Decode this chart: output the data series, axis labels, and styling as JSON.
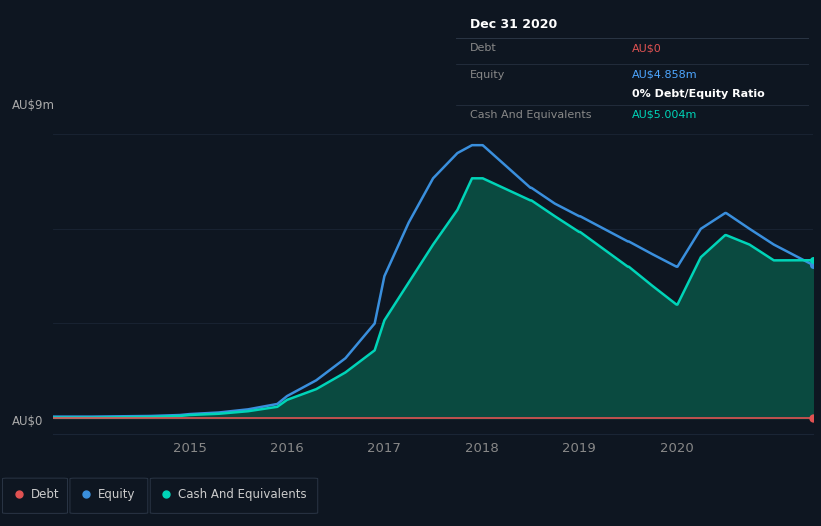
{
  "bg_color": "#0e1621",
  "plot_bg_color": "#0e1621",
  "grid_color": "#1a2535",
  "title_box": {
    "date": "Dec 31 2020",
    "debt_label": "Debt",
    "debt_value": "AU$0",
    "equity_label": "Equity",
    "equity_value": "AU$4.858m",
    "ratio_text": "0% Debt/Equity Ratio",
    "cash_label": "Cash And Equivalents",
    "cash_value": "AU$5.004m",
    "debt_color": "#e05252",
    "equity_color": "#4da6ff",
    "cash_color": "#00d4b8",
    "ratio_bold_color": "#ffffff",
    "label_color": "#888888",
    "bg": "#080d12",
    "border_color": "#2a3545"
  },
  "ylabel": "AU$9m",
  "y0_label": "AU$0",
  "xlim_start": 2013.6,
  "xlim_end": 2021.4,
  "ylim": [
    -0.5,
    9.5
  ],
  "xticks": [
    2015,
    2016,
    2017,
    2018,
    2019,
    2020
  ],
  "yticks_vals": [
    0,
    3,
    6,
    9
  ],
  "debt_color": "#e05252",
  "equity_color": "#3a8fdd",
  "cash_color": "#00d4b8",
  "cash_fill_color": "#0a4a40",
  "legend_bg": "#0e1621",
  "legend_border": "#2a3545",
  "debt_x": [
    2013.6,
    2014.0,
    2014.5,
    2015.0,
    2015.5,
    2016.0,
    2016.5,
    2017.0,
    2017.5,
    2018.0,
    2018.5,
    2019.0,
    2019.5,
    2020.0,
    2020.5,
    2021.0,
    2021.4
  ],
  "debt_y": [
    0.0,
    0.0,
    0.0,
    0.0,
    0.0,
    0.0,
    0.0,
    0.0,
    0.0,
    0.0,
    0.0,
    0.0,
    0.0,
    0.0,
    0.0,
    0.0,
    0.0
  ],
  "equity_x": [
    2013.6,
    2014.0,
    2014.3,
    2014.6,
    2014.9,
    2015.0,
    2015.3,
    2015.6,
    2015.9,
    2016.0,
    2016.3,
    2016.6,
    2016.9,
    2017.0,
    2017.25,
    2017.5,
    2017.75,
    2017.9,
    2018.0,
    2018.01,
    2018.5,
    2018.51,
    2018.75,
    2019.0,
    2019.01,
    2019.5,
    2019.51,
    2019.75,
    2020.0,
    2020.01,
    2020.25,
    2020.5,
    2020.51,
    2020.75,
    2021.0,
    2021.4
  ],
  "equity_y": [
    0.05,
    0.05,
    0.06,
    0.07,
    0.1,
    0.13,
    0.18,
    0.28,
    0.45,
    0.7,
    1.2,
    1.9,
    3.0,
    4.5,
    6.2,
    7.6,
    8.4,
    8.65,
    8.65,
    8.65,
    7.3,
    7.3,
    6.8,
    6.4,
    6.4,
    5.6,
    5.6,
    5.2,
    4.8,
    4.8,
    6.0,
    6.5,
    6.5,
    6.0,
    5.5,
    4.858
  ],
  "cash_x": [
    2013.6,
    2014.0,
    2014.3,
    2014.6,
    2014.9,
    2015.0,
    2015.3,
    2015.6,
    2015.9,
    2016.0,
    2016.3,
    2016.6,
    2016.9,
    2017.0,
    2017.25,
    2017.5,
    2017.75,
    2017.9,
    2018.0,
    2018.01,
    2018.5,
    2018.51,
    2018.75,
    2019.0,
    2019.01,
    2019.5,
    2019.51,
    2019.75,
    2020.0,
    2020.01,
    2020.25,
    2020.5,
    2020.51,
    2020.75,
    2021.0,
    2021.4
  ],
  "cash_y": [
    0.02,
    0.02,
    0.03,
    0.04,
    0.07,
    0.1,
    0.14,
    0.22,
    0.36,
    0.58,
    0.92,
    1.45,
    2.15,
    3.1,
    4.3,
    5.5,
    6.6,
    7.6,
    7.6,
    7.6,
    6.9,
    6.9,
    6.4,
    5.9,
    5.9,
    4.8,
    4.8,
    4.2,
    3.6,
    3.6,
    5.1,
    5.8,
    5.8,
    5.5,
    5.0,
    5.004
  ]
}
